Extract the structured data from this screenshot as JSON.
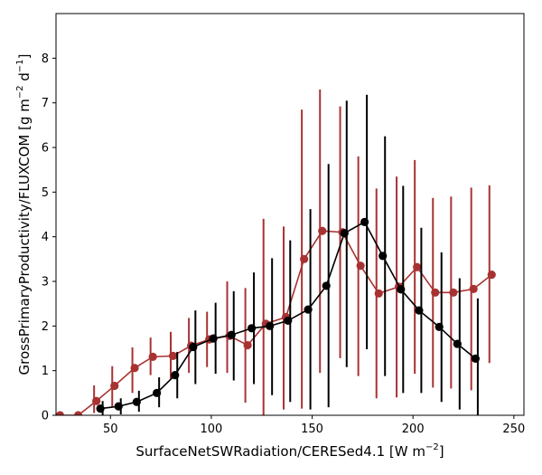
{
  "chart_data": {
    "type": "line",
    "title": "",
    "xlabel": "SurfaceNetSWRadiation/CERESed4.1 [W m",
    "xlabel_sup": "−2",
    "xlabel_tail": "]",
    "ylabel": "GrossPrimaryProductivity/FLUXCOM [g m",
    "ylabel_sup1": "−2",
    "ylabel_mid": " d",
    "ylabel_sup2": "−1",
    "ylabel_tail": "]",
    "xlim": [
      23,
      255
    ],
    "ylim": [
      0,
      9
    ],
    "xticks": [
      50,
      100,
      150,
      200,
      250
    ],
    "yticks": [
      0,
      1,
      2,
      3,
      4,
      5,
      6,
      7,
      8
    ],
    "grid": false,
    "series": [
      {
        "color": "#a83232",
        "points": [
          {
            "x": 25,
            "y": 0.0,
            "lo": 0.0,
            "hi": 0.0
          },
          {
            "x": 34,
            "y": 0.0,
            "lo": 0.0,
            "hi": 0.0
          },
          {
            "x": 43,
            "y": 0.32,
            "lo": 0.05,
            "hi": 0.67
          },
          {
            "x": 52,
            "y": 0.66,
            "lo": 0.18,
            "hi": 1.1
          },
          {
            "x": 62,
            "y": 1.06,
            "lo": 0.5,
            "hi": 1.52
          },
          {
            "x": 71,
            "y": 1.31,
            "lo": 0.9,
            "hi": 1.74
          },
          {
            "x": 81,
            "y": 1.33,
            "lo": 0.82,
            "hi": 1.87
          },
          {
            "x": 90,
            "y": 1.56,
            "lo": 0.95,
            "hi": 2.18
          },
          {
            "x": 99,
            "y": 1.7,
            "lo": 1.08,
            "hi": 2.32
          },
          {
            "x": 109,
            "y": 1.78,
            "lo": 0.95,
            "hi": 3.0
          },
          {
            "x": 118,
            "y": 1.57,
            "lo": 0.28,
            "hi": 2.85
          },
          {
            "x": 127,
            "y": 2.05,
            "lo": 0.0,
            "hi": 4.4
          },
          {
            "x": 137,
            "y": 2.2,
            "lo": 0.13,
            "hi": 4.23
          },
          {
            "x": 146,
            "y": 3.5,
            "lo": 0.15,
            "hi": 6.85
          },
          {
            "x": 155,
            "y": 4.13,
            "lo": 0.95,
            "hi": 7.3
          },
          {
            "x": 165,
            "y": 4.1,
            "lo": 1.28,
            "hi": 6.92
          },
          {
            "x": 174,
            "y": 3.35,
            "lo": 0.88,
            "hi": 5.8
          },
          {
            "x": 183,
            "y": 2.73,
            "lo": 0.38,
            "hi": 5.08
          },
          {
            "x": 193,
            "y": 2.88,
            "lo": 0.4,
            "hi": 5.35
          },
          {
            "x": 202,
            "y": 3.32,
            "lo": 0.93,
            "hi": 5.72
          },
          {
            "x": 211,
            "y": 2.75,
            "lo": 0.62,
            "hi": 4.87
          },
          {
            "x": 220,
            "y": 2.75,
            "lo": 0.6,
            "hi": 4.9
          },
          {
            "x": 230,
            "y": 2.83,
            "lo": 0.56,
            "hi": 5.1
          },
          {
            "x": 239,
            "y": 3.15,
            "lo": 1.17,
            "hi": 5.15
          }
        ]
      },
      {
        "color": "#000000",
        "points": [
          {
            "x": 45,
            "y": 0.15,
            "lo": 0.0,
            "hi": 0.32
          },
          {
            "x": 54,
            "y": 0.2,
            "lo": 0.02,
            "hi": 0.38
          },
          {
            "x": 63,
            "y": 0.3,
            "lo": 0.08,
            "hi": 0.55
          },
          {
            "x": 73,
            "y": 0.5,
            "lo": 0.18,
            "hi": 0.85
          },
          {
            "x": 82,
            "y": 0.9,
            "lo": 0.38,
            "hi": 1.42
          },
          {
            "x": 91,
            "y": 1.53,
            "lo": 0.7,
            "hi": 2.35
          },
          {
            "x": 101,
            "y": 1.72,
            "lo": 0.93,
            "hi": 2.52
          },
          {
            "x": 110,
            "y": 1.8,
            "lo": 0.78,
            "hi": 2.78
          },
          {
            "x": 120,
            "y": 1.95,
            "lo": 0.7,
            "hi": 3.2
          },
          {
            "x": 129,
            "y": 2.0,
            "lo": 0.45,
            "hi": 3.52
          },
          {
            "x": 138,
            "y": 2.12,
            "lo": 0.3,
            "hi": 3.92
          },
          {
            "x": 148,
            "y": 2.37,
            "lo": 0.13,
            "hi": 4.62
          },
          {
            "x": 157,
            "y": 2.9,
            "lo": 0.18,
            "hi": 5.63
          },
          {
            "x": 166,
            "y": 4.08,
            "lo": 1.08,
            "hi": 7.05
          },
          {
            "x": 176,
            "y": 4.33,
            "lo": 1.48,
            "hi": 7.18
          },
          {
            "x": 185,
            "y": 3.57,
            "lo": 0.88,
            "hi": 6.25
          },
          {
            "x": 194,
            "y": 2.82,
            "lo": 0.5,
            "hi": 5.14
          },
          {
            "x": 203,
            "y": 2.35,
            "lo": 0.5,
            "hi": 4.2
          },
          {
            "x": 213,
            "y": 1.98,
            "lo": 0.3,
            "hi": 3.65
          },
          {
            "x": 222,
            "y": 1.6,
            "lo": 0.13,
            "hi": 3.07
          },
          {
            "x": 231,
            "y": 1.27,
            "lo": 0.0,
            "hi": 2.62
          }
        ]
      }
    ]
  }
}
